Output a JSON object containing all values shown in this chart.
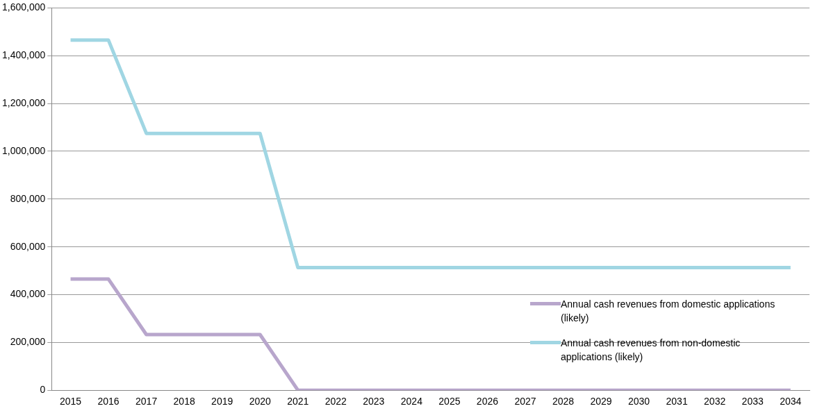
{
  "chart_data": {
    "type": "line",
    "categories": [
      "2015",
      "2016",
      "2017",
      "2018",
      "2019",
      "2020",
      "2021",
      "2022",
      "2023",
      "2024",
      "2025",
      "2026",
      "2027",
      "2028",
      "2029",
      "2030",
      "2031",
      "2032",
      "2033",
      "2034"
    ],
    "series": [
      {
        "name": "Annual cash revenues from domestic applications (likely)",
        "color": "#b8a6cc",
        "values": [
          465000,
          465000,
          233000,
          233000,
          233000,
          233000,
          0,
          0,
          0,
          0,
          0,
          0,
          0,
          0,
          0,
          0,
          0,
          0,
          0,
          0
        ]
      },
      {
        "name": "Annual cash revenues from non-domestic applications (likely)",
        "color": "#a0d6e3",
        "values": [
          1465000,
          1465000,
          1075000,
          1075000,
          1075000,
          1075000,
          513000,
          513000,
          513000,
          513000,
          513000,
          513000,
          513000,
          513000,
          513000,
          513000,
          513000,
          513000,
          513000,
          513000
        ]
      }
    ],
    "ylim": [
      0,
      1600000
    ],
    "yticks": [
      0,
      {
        "value": 200000,
        "label": "200,000"
      },
      {
        "value": 400000,
        "label": "400,000"
      },
      {
        "value": 600000,
        "label": "600,000"
      },
      {
        "value": 800000,
        "label": "800,000"
      },
      {
        "value": 1000000,
        "label": "1,000,000"
      },
      {
        "value": 1200000,
        "label": "1,200,000"
      },
      {
        "value": 1400000,
        "label": "1,400,000"
      },
      {
        "value": 1600000,
        "label": "1,600,000"
      }
    ],
    "grid": "y",
    "legend": "bottom right",
    "marker": "none",
    "line_style": "solid"
  }
}
